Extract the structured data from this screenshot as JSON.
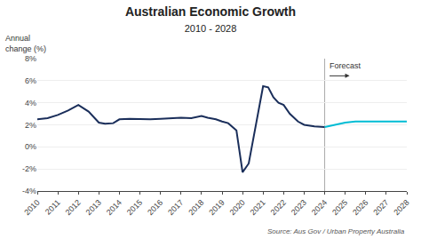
{
  "chart_data": {
    "type": "line",
    "title": "Australian Economic Growth",
    "subtitle": "2010 - 2028",
    "ylabel": "Annual\nchange (%)",
    "source": "Source: Aus Gov / Urban Property Australia",
    "vline": {
      "x": 2024,
      "label": "Forecast",
      "color": "#aaaaaa"
    },
    "xlim": [
      2010,
      2028
    ],
    "xticks": [
      2010,
      2011,
      2012,
      2013,
      2014,
      2015,
      2016,
      2017,
      2018,
      2019,
      2020,
      2021,
      2022,
      2023,
      2024,
      2025,
      2026,
      2027,
      2028
    ],
    "ylim": [
      -4,
      8
    ],
    "yticks": [
      {
        "value": -4,
        "label": "-4%"
      },
      {
        "value": -2,
        "label": "-2%"
      },
      {
        "value": 0,
        "label": "0%"
      },
      {
        "value": 2,
        "label": "2%"
      },
      {
        "value": 4,
        "label": "4%"
      },
      {
        "value": 6,
        "label": "6%"
      },
      {
        "value": 8,
        "label": "8%"
      }
    ],
    "grid": "y",
    "series": [
      {
        "color": "#1a2e5a",
        "x": [
          2010,
          2010.5,
          2011,
          2011.5,
          2012,
          2012.5,
          2013,
          2013.3,
          2013.7,
          2014,
          2014.5,
          2015,
          2015.5,
          2016,
          2016.5,
          2017,
          2017.5,
          2018,
          2018.3,
          2018.7,
          2019,
          2019.3,
          2019.7,
          2020,
          2020.3,
          2020.6,
          2021,
          2021.25,
          2021.5,
          2021.75,
          2022,
          2022.3,
          2022.7,
          2023,
          2023.5,
          2024
        ],
        "values": [
          2.5,
          2.6,
          2.9,
          3.3,
          3.8,
          3.2,
          2.2,
          2.1,
          2.15,
          2.5,
          2.55,
          2.5,
          2.5,
          2.55,
          2.6,
          2.65,
          2.6,
          2.8,
          2.65,
          2.5,
          2.3,
          2.15,
          1.5,
          -2.3,
          -1.5,
          1.5,
          5.5,
          5.4,
          4.5,
          4.0,
          3.8,
          3.0,
          2.3,
          2.0,
          1.85,
          1.8
        ]
      },
      {
        "color": "#00bcd4",
        "x": [
          2024,
          2024.5,
          2025,
          2025.5,
          2026,
          2026.5,
          2027,
          2027.5,
          2028
        ],
        "values": [
          1.8,
          2.0,
          2.2,
          2.3,
          2.3,
          2.3,
          2.25,
          2.3,
          2.3
        ]
      }
    ]
  }
}
